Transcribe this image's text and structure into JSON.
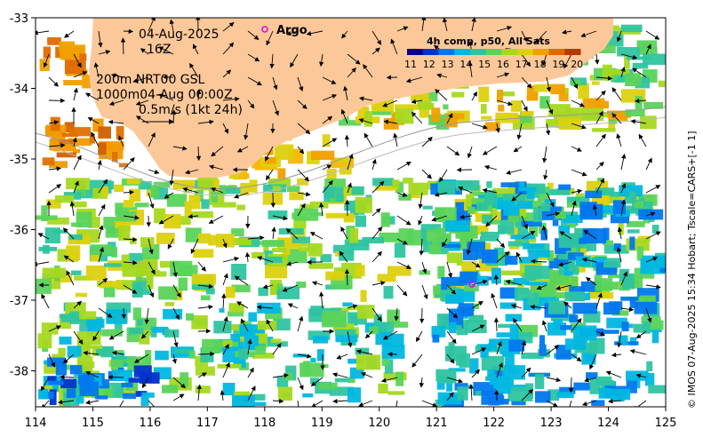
{
  "header": {
    "date": "04-Aug-2025",
    "hour": "16Z",
    "depth_line1": "200m  NRT00 GSL",
    "depth_line2": "1000m04-Aug 00:00Z",
    "scale_text": "0.5m/s (1kt 24h)",
    "argo_label": "Argo"
  },
  "colorbar": {
    "title": "4h comp, p50, All Sats",
    "ticks": [
      "11",
      "12",
      "13",
      "14",
      "15",
      "16",
      "17",
      "18",
      "19",
      "20"
    ],
    "colors": [
      "#00008b",
      "#0033cc",
      "#0077ee",
      "#00b7e0",
      "#2ec4a0",
      "#5ad35a",
      "#a5d81f",
      "#dcd10e",
      "#f0a000",
      "#e06a00",
      "#b33a00"
    ]
  },
  "axes": {
    "x_ticks": [
      "114",
      "115",
      "116",
      "117",
      "118",
      "119",
      "120",
      "121",
      "122",
      "123",
      "124",
      "125"
    ],
    "y_ticks": [
      "-33",
      "-34",
      "-35",
      "-36",
      "-37",
      "-38"
    ]
  },
  "credit": "© IMOS 07-Aug-2025 15:34 Hobart; Tscale=CARS+[-1 1]",
  "colors": {
    "land": "#fdc899",
    "ocean": "#ffffff"
  }
}
